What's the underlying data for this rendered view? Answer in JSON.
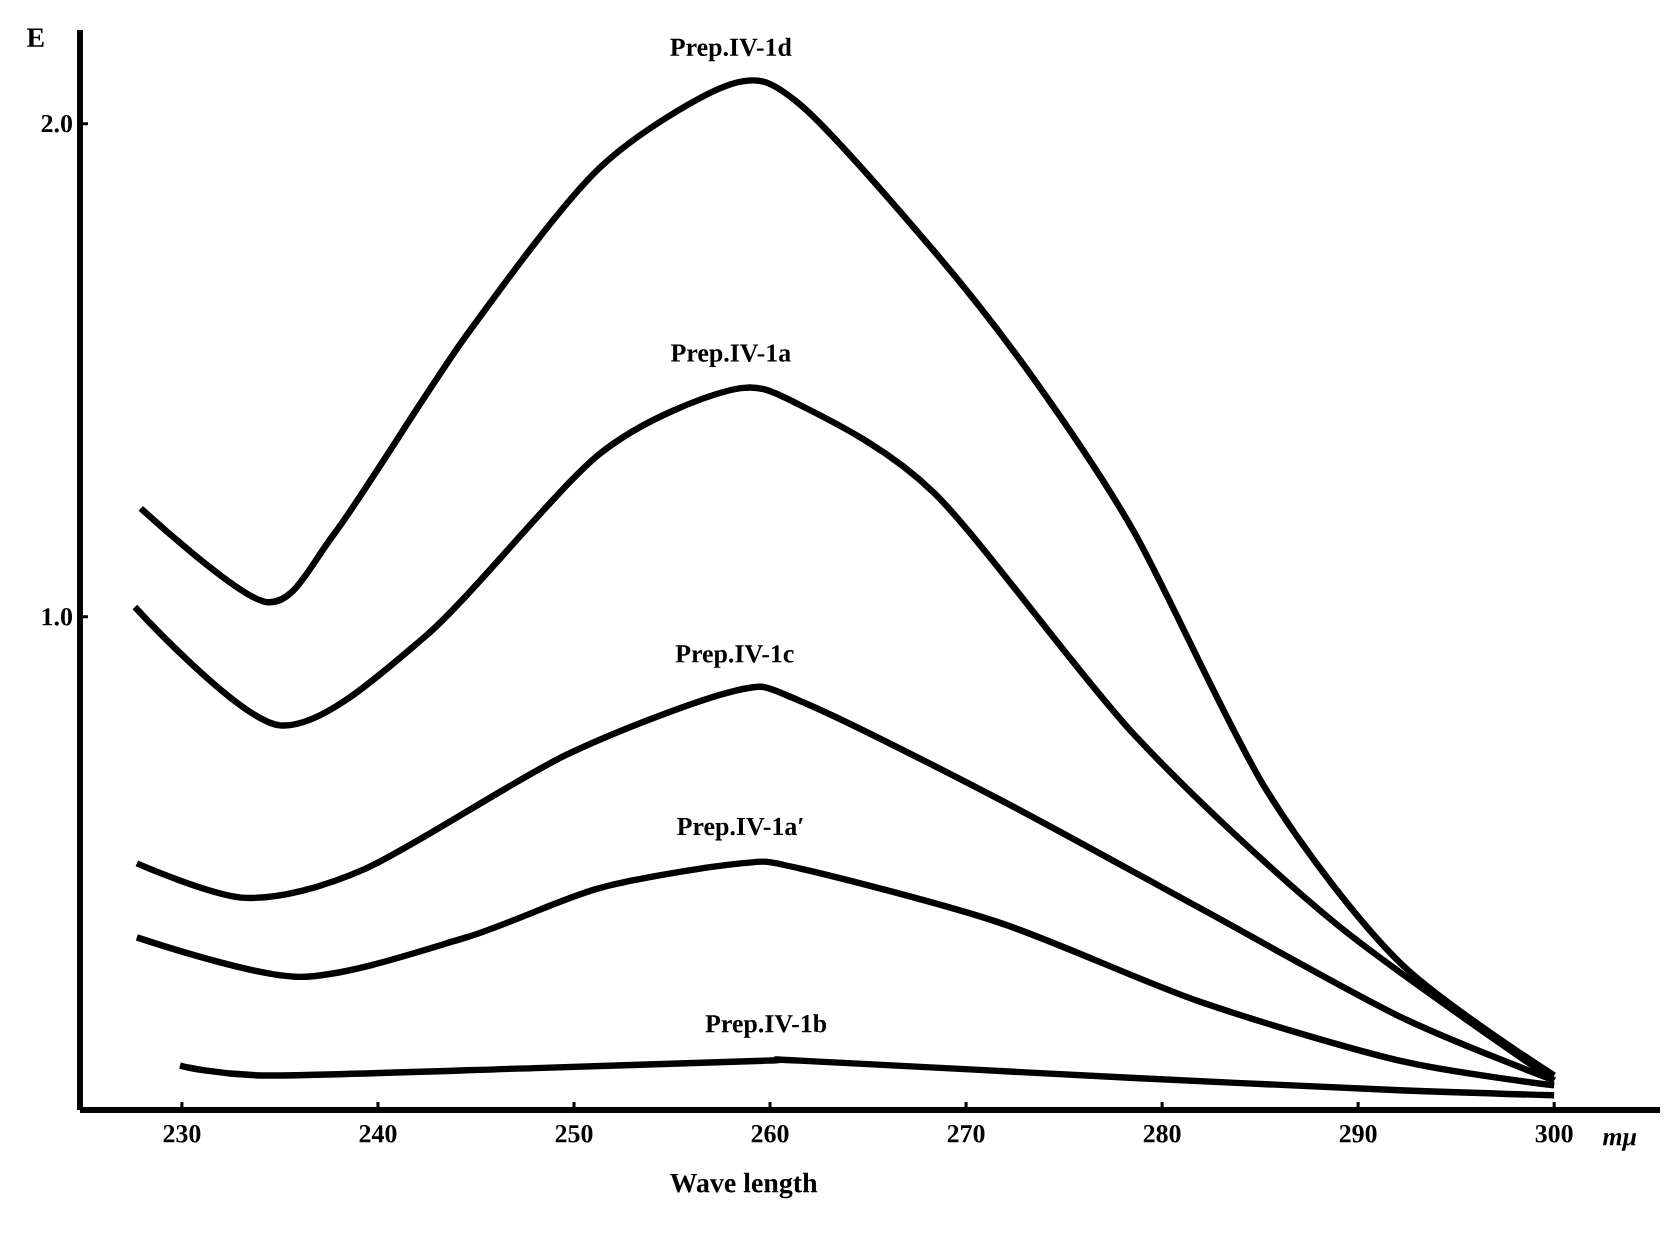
{
  "chart_data": {
    "type": "line",
    "xlabel": "Wave length",
    "ylabel": "E",
    "annotations": [
      "mμ"
    ],
    "xlim": [
      224.8,
      305.4
    ],
    "ylim": [
      0,
      2.19
    ],
    "xticks": [
      230,
      240,
      250,
      260,
      270,
      280,
      290,
      300
    ],
    "yticks": [
      {
        "value": 1.0,
        "label": "1.0"
      },
      {
        "value": 2.0,
        "label": "2.0"
      }
    ],
    "grid": false,
    "legend": false,
    "marker": "none",
    "line_style": "solid",
    "series": [
      {
        "name": "Prep.IV-1d",
        "color": "#000000",
        "x": [
          227.9,
          234.3,
          237.8,
          244.5,
          251.3,
          258,
          261.5,
          268.4,
          273.5,
          278.6,
          285.3,
          292.1,
          300
        ],
        "values": [
          1.22,
          1.03,
          1.17,
          1.57,
          1.91,
          2.08,
          2.04,
          1.74,
          1.48,
          1.17,
          0.65,
          0.3,
          0.07
        ]
      },
      {
        "name": "Prep.IV-1a",
        "color": "#000000",
        "x": [
          227.6,
          235,
          242.4,
          251.3,
          258,
          261.5,
          268.4,
          278.6,
          288.8,
          300
        ],
        "values": [
          1.02,
          0.78,
          0.96,
          1.33,
          1.46,
          1.43,
          1.25,
          0.76,
          0.38,
          0.06
        ]
      },
      {
        "name": "Prep.IV-1c",
        "color": "#000000",
        "x": [
          227.7,
          233.3,
          239.4,
          249.6,
          258.2,
          261.5,
          271.7,
          281.9,
          292.1,
          300
        ],
        "values": [
          0.5,
          0.43,
          0.49,
          0.72,
          0.85,
          0.83,
          0.63,
          0.41,
          0.19,
          0.06
        ]
      },
      {
        "name": "Prep.IV-1a′",
        "color": "#000000",
        "x": [
          227.7,
          236,
          244.5,
          251.3,
          258.5,
          261.5,
          271.7,
          281.9,
          292.1,
          300
        ],
        "values": [
          0.35,
          0.27,
          0.35,
          0.45,
          0.5,
          0.49,
          0.38,
          0.22,
          0.1,
          0.05
        ]
      },
      {
        "name": "Prep.IV-1b",
        "color": "#000000",
        "x": [
          229.9,
          234.3,
          248,
          259.8,
          261.5,
          278.6,
          292.1,
          300
        ],
        "values": [
          0.09,
          0.07,
          0.085,
          0.1,
          0.1,
          0.065,
          0.04,
          0.03
        ]
      }
    ]
  }
}
